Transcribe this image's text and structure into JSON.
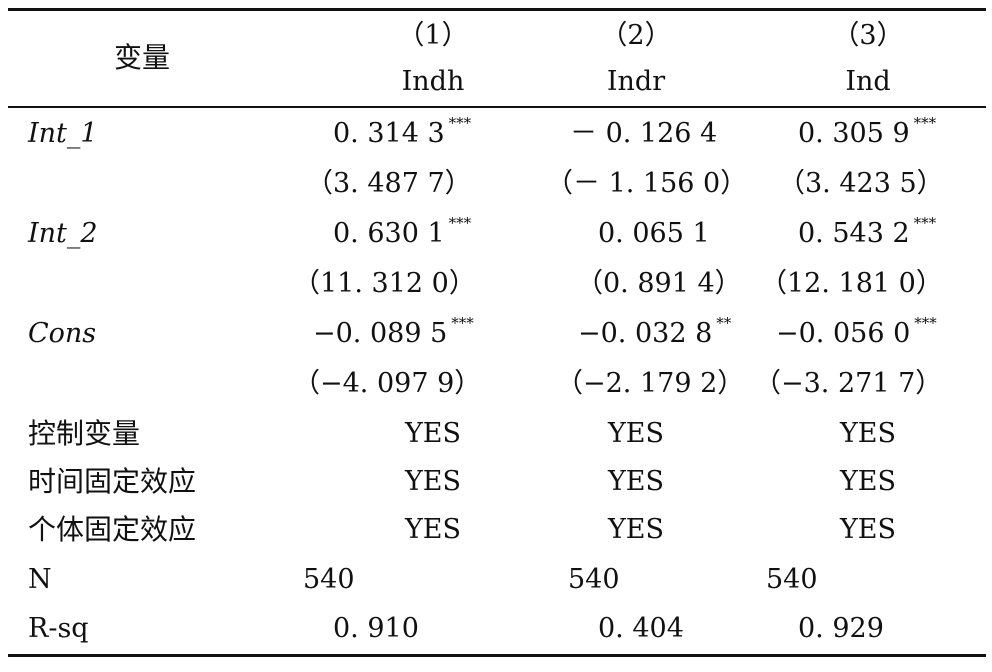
{
  "header": {
    "variable_label": "变量",
    "columns": [
      {
        "number": "（1）",
        "name": "Indh"
      },
      {
        "number": "（2）",
        "name": "Indr"
      },
      {
        "number": "（3）",
        "name": "Ind"
      }
    ]
  },
  "rows": {
    "int1": {
      "label": "Int_1",
      "c1": "0. 314 3",
      "c1_stars": "***",
      "c2": "－ 0. 126 4",
      "c2_stars": "",
      "c3": "0. 305 9",
      "c3_stars": "***",
      "t1": "（3. 487 7）",
      "t2": "（－ 1. 156 0）",
      "t3": "（3. 423 5）"
    },
    "int2": {
      "label": "Int_2",
      "c1": "0. 630 1",
      "c1_stars": "***",
      "c2": "0. 065 1",
      "c2_stars": "",
      "c3": "0. 543 2",
      "c3_stars": "***",
      "t1": "（11. 312 0）",
      "t2": "（0. 891 4）",
      "t3": "（12. 181 0）"
    },
    "cons": {
      "label": "Cons",
      "c1": "−0. 089 5",
      "c1_stars": "***",
      "c2": "−0. 032 8",
      "c2_stars": "**",
      "c3": "−0. 056 0",
      "c3_stars": "***",
      "t1": "（−4. 097 9）",
      "t2": "（−2. 179 2）",
      "t3": "（−3. 271 7）"
    },
    "controls": {
      "label": "控制变量",
      "c1": "YES",
      "c2": "YES",
      "c3": "YES"
    },
    "time_fe": {
      "label": "时间固定效应",
      "c1": "YES",
      "c2": "YES",
      "c3": "YES"
    },
    "indiv_fe": {
      "label": "个体固定效应",
      "c1": "YES",
      "c2": "YES",
      "c3": "YES"
    },
    "n": {
      "label": "N",
      "c1": "540",
      "c2": "540",
      "c3": "540"
    },
    "rsq": {
      "label": "R-sq",
      "c1": "0. 910",
      "c2": "0. 404",
      "c3": "0. 929"
    }
  }
}
